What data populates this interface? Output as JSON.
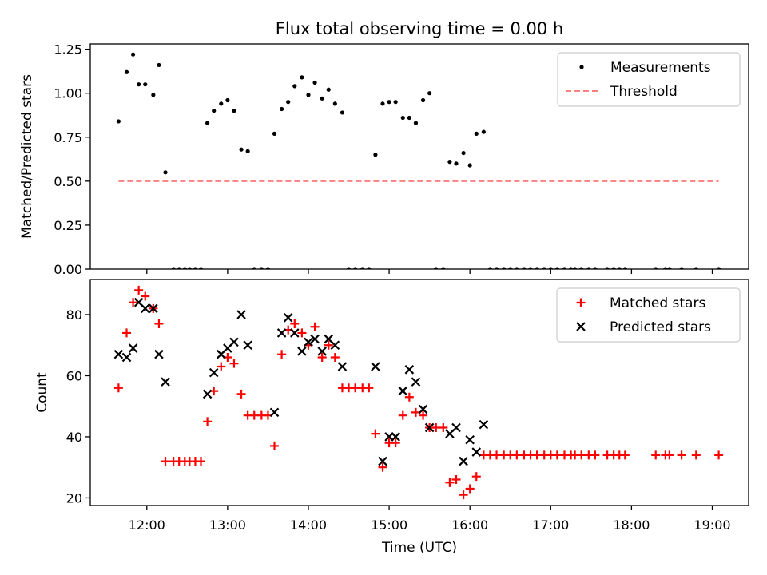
{
  "figure": {
    "title": "Flux total observing time = 0.00 h",
    "xlabel": "Time (UTC)"
  },
  "colors": {
    "measurements": "#000000",
    "threshold": "#ff8080",
    "matched": "#ff0000",
    "predicted": "#000000"
  },
  "chart_data": [
    {
      "type": "scatter",
      "ylabel": "Matched/Predicted stars",
      "xlim": [
        11.3,
        19.45
      ],
      "ylim": [
        0,
        1.28
      ],
      "yticks": [
        {
          "v": 0.0,
          "label": "0.00"
        },
        {
          "v": 0.25,
          "label": "0.25"
        },
        {
          "v": 0.5,
          "label": "0.50"
        },
        {
          "v": 0.75,
          "label": "0.75"
        },
        {
          "v": 1.0,
          "label": "1.00"
        },
        {
          "v": 1.25,
          "label": "1.25"
        }
      ],
      "xticks": [],
      "legend_position": "top-right",
      "legend": [
        "Measurements",
        "Threshold"
      ],
      "series": [
        {
          "name": "Measurements",
          "marker": "dot",
          "x": [
            11.65,
            11.75,
            11.83,
            11.9,
            11.98,
            12.08,
            12.15,
            12.23,
            12.33,
            12.4,
            12.47,
            12.53,
            12.6,
            12.67,
            12.75,
            12.83,
            12.92,
            13.0,
            13.08,
            13.17,
            13.25,
            13.33,
            13.42,
            13.5,
            13.58,
            13.67,
            13.75,
            13.83,
            13.92,
            14.0,
            14.08,
            14.17,
            14.25,
            14.33,
            14.42,
            14.5,
            14.58,
            14.67,
            14.75,
            14.83,
            14.92,
            15.0,
            15.08,
            15.17,
            15.25,
            15.33,
            15.42,
            15.5,
            15.58,
            15.67,
            15.75,
            15.83,
            15.92,
            16.0,
            16.08,
            16.17,
            16.25,
            16.33,
            16.42,
            16.5,
            16.58,
            16.67,
            16.75,
            16.83,
            16.92,
            17.0,
            17.08,
            17.17,
            17.25,
            17.3,
            17.38,
            17.47,
            17.55,
            17.7,
            17.78,
            17.85,
            17.92,
            18.3,
            18.42,
            18.47,
            18.62,
            18.8,
            19.08
          ],
          "y": [
            0.84,
            1.12,
            1.22,
            1.05,
            1.05,
            0.99,
            1.16,
            0.55,
            0,
            0,
            0,
            0,
            0,
            0,
            0.83,
            0.9,
            0.94,
            0.96,
            0.9,
            0.68,
            0.67,
            0,
            0,
            0,
            0.77,
            0.91,
            0.95,
            1.04,
            1.09,
            0.99,
            1.06,
            0.97,
            1.02,
            0.94,
            0.89,
            0,
            0,
            0,
            0,
            0.65,
            0.94,
            0.95,
            0.95,
            0.86,
            0.86,
            0.83,
            0.96,
            1.0,
            0,
            0,
            0.61,
            0.6,
            0.66,
            0.59,
            0.77,
            0.78,
            0,
            0,
            0,
            0,
            0,
            0,
            0,
            0,
            0,
            0,
            0,
            0,
            0,
            0,
            0,
            0,
            0,
            0,
            0,
            0,
            0,
            0,
            0,
            0,
            0,
            0,
            0
          ]
        },
        {
          "name": "Threshold",
          "marker": "dashed-line",
          "x": [
            11.65,
            19.08
          ],
          "y": [
            0.5,
            0.5
          ]
        }
      ]
    },
    {
      "type": "scatter",
      "ylabel": "Count",
      "xlim": [
        11.3,
        19.45
      ],
      "ylim": [
        17.5,
        91.5
      ],
      "yticks": [
        {
          "v": 20,
          "label": "20"
        },
        {
          "v": 40,
          "label": "40"
        },
        {
          "v": 60,
          "label": "60"
        },
        {
          "v": 80,
          "label": "80"
        }
      ],
      "xticks": [
        {
          "v": 12,
          "label": "12:00"
        },
        {
          "v": 13,
          "label": "13:00"
        },
        {
          "v": 14,
          "label": "14:00"
        },
        {
          "v": 15,
          "label": "15:00"
        },
        {
          "v": 16,
          "label": "16:00"
        },
        {
          "v": 17,
          "label": "17:00"
        },
        {
          "v": 18,
          "label": "18:00"
        },
        {
          "v": 19,
          "label": "19:00"
        }
      ],
      "legend_position": "top-right",
      "legend": [
        "Matched stars",
        "Predicted stars"
      ],
      "series": [
        {
          "name": "Matched stars",
          "marker": "plus",
          "x": [
            11.65,
            11.75,
            11.83,
            11.9,
            11.98,
            12.08,
            12.15,
            12.23,
            12.33,
            12.4,
            12.47,
            12.53,
            12.6,
            12.67,
            12.75,
            12.83,
            12.92,
            13.0,
            13.08,
            13.17,
            13.25,
            13.33,
            13.42,
            13.5,
            13.58,
            13.67,
            13.75,
            13.83,
            13.92,
            14.0,
            14.08,
            14.17,
            14.25,
            14.33,
            14.42,
            14.5,
            14.58,
            14.67,
            14.75,
            14.83,
            14.92,
            15.0,
            15.08,
            15.17,
            15.25,
            15.33,
            15.42,
            15.5,
            15.58,
            15.67,
            15.75,
            15.83,
            15.92,
            16.0,
            16.08,
            16.17,
            16.25,
            16.33,
            16.42,
            16.5,
            16.58,
            16.67,
            16.75,
            16.83,
            16.92,
            17.0,
            17.08,
            17.17,
            17.25,
            17.3,
            17.38,
            17.47,
            17.55,
            17.7,
            17.78,
            17.85,
            17.92,
            18.3,
            18.42,
            18.47,
            18.62,
            18.8,
            19.08
          ],
          "y": [
            56,
            74,
            84,
            88,
            86,
            82,
            77,
            32,
            32,
            32,
            32,
            32,
            32,
            32,
            45,
            55,
            63,
            66,
            64,
            54,
            47,
            47,
            47,
            47,
            37,
            67,
            75,
            77,
            74,
            70,
            76,
            66,
            70,
            66,
            56,
            56,
            56,
            56,
            56,
            41,
            30,
            38,
            38,
            47,
            53,
            48,
            47,
            43,
            43,
            43,
            25,
            26,
            21,
            23,
            27,
            34,
            34,
            34,
            34,
            34,
            34,
            34,
            34,
            34,
            34,
            34,
            34,
            34,
            34,
            34,
            34,
            34,
            34,
            34,
            34,
            34,
            34,
            34,
            34,
            34,
            34,
            34,
            34
          ]
        },
        {
          "name": "Predicted stars",
          "marker": "x",
          "x": [
            11.65,
            11.75,
            11.83,
            11.9,
            11.98,
            12.08,
            12.15,
            12.23,
            12.75,
            12.83,
            12.92,
            13.0,
            13.08,
            13.17,
            13.25,
            13.58,
            13.67,
            13.75,
            13.83,
            13.92,
            14.0,
            14.08,
            14.17,
            14.25,
            14.33,
            14.42,
            14.83,
            14.92,
            15.0,
            15.08,
            15.17,
            15.25,
            15.33,
            15.42,
            15.5,
            15.75,
            15.83,
            15.92,
            16.0,
            16.08,
            16.17
          ],
          "y": [
            67,
            66,
            69,
            84,
            82,
            82,
            67,
            58,
            54,
            61,
            67,
            69,
            71,
            80,
            70,
            48,
            74,
            79,
            74,
            68,
            71,
            72,
            68,
            72,
            70,
            63,
            63,
            32,
            40,
            40,
            55,
            62,
            58,
            49,
            43,
            41,
            43,
            32,
            39,
            35,
            44
          ]
        }
      ]
    }
  ]
}
